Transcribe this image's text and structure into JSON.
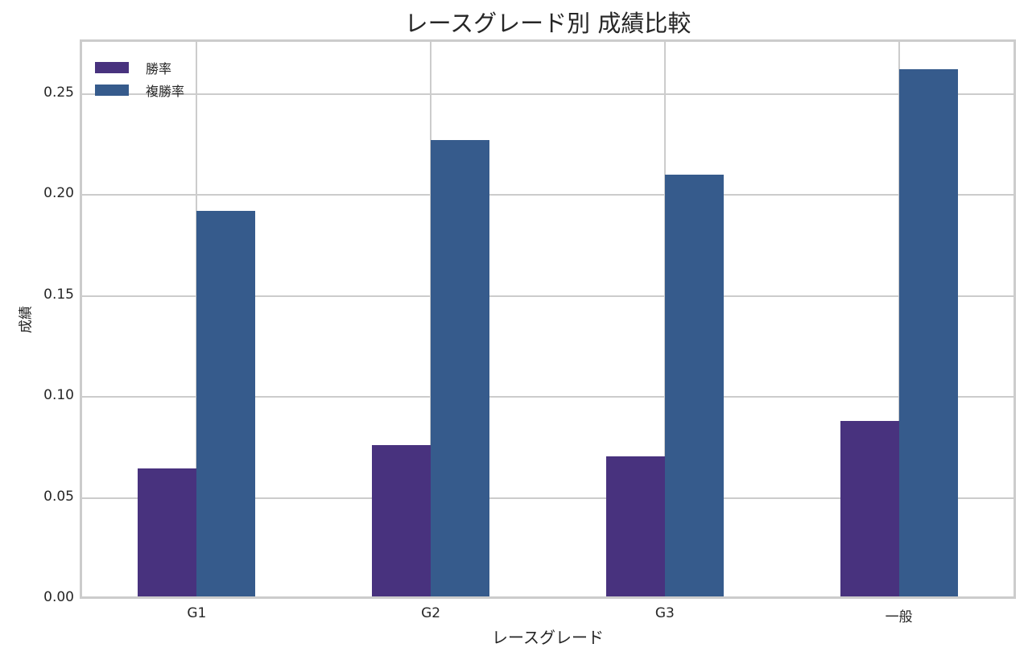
{
  "chart_data": {
    "type": "bar",
    "title": "レースグレード別 成績比較",
    "xlabel": "レースグレード",
    "ylabel": "成績",
    "categories": [
      "G1",
      "G2",
      "G3",
      "一般"
    ],
    "series": [
      {
        "name": "勝率",
        "color": "#48327e",
        "values": [
          0.0634,
          0.075,
          0.0693,
          0.0868
        ]
      },
      {
        "name": "複勝率",
        "color": "#365b8c",
        "values": [
          0.191,
          0.226,
          0.209,
          0.261
        ]
      }
    ],
    "ylim": [
      0,
      0.2746
    ],
    "yticks": [
      "0.00",
      "0.05",
      "0.10",
      "0.15",
      "0.20",
      "0.25"
    ],
    "grid": true,
    "legend_position": "upper left"
  }
}
